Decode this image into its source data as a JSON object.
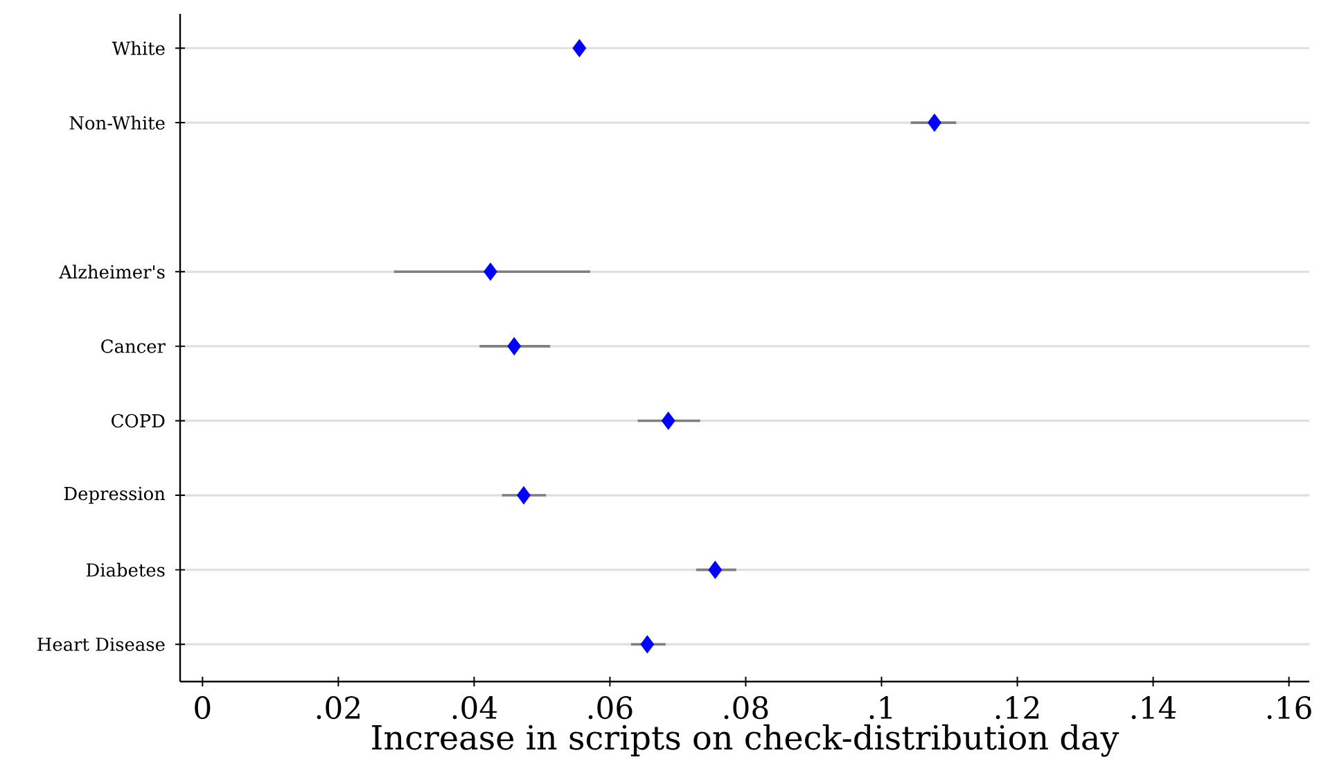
{
  "chart_data": {
    "type": "scatter",
    "orientation": "horizontal",
    "xlabel": "Increase in scripts on check-distribution day",
    "categories": [
      "White",
      "Non-White",
      null,
      "Alzheimer's",
      "Cancer",
      "COPD",
      "Depression",
      "Diabetes",
      "Heart Disease"
    ],
    "values": [
      0.0555,
      0.1078,
      null,
      0.0424,
      0.0459,
      0.0686,
      0.0473,
      0.0755,
      0.0655
    ],
    "errors": [
      null,
      [
        0.1043,
        0.111
      ],
      null,
      [
        0.0282,
        0.0571
      ],
      [
        0.0408,
        0.0512
      ],
      [
        0.0641,
        0.0733
      ],
      [
        0.0441,
        0.0506
      ],
      [
        0.0727,
        0.0786
      ],
      [
        0.0631,
        0.0682
      ]
    ],
    "color": "#0000ff",
    "marker": "diamond",
    "grid": "y",
    "xlim": [
      -0.0033,
      0.163
    ],
    "xticks": [
      {
        "value": 0,
        "label": "0"
      },
      {
        "value": 0.02,
        "label": ".02"
      },
      {
        "value": 0.04,
        "label": ".04"
      },
      {
        "value": 0.06,
        "label": ".06"
      },
      {
        "value": 0.08,
        "label": ".08"
      },
      {
        "value": 0.1,
        "label": ".1"
      },
      {
        "value": 0.12,
        "label": ".12"
      },
      {
        "value": 0.14,
        "label": ".14"
      },
      {
        "value": 0.16,
        "label": ".16"
      }
    ]
  }
}
